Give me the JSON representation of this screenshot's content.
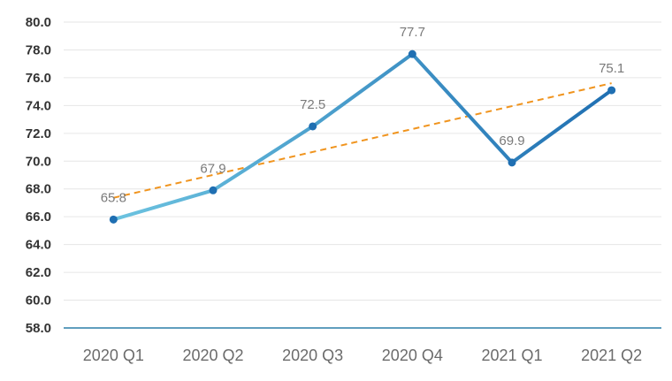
{
  "chart_data": {
    "type": "line",
    "categories": [
      "2020 Q1",
      "2020 Q2",
      "2020 Q3",
      "2020 Q4",
      "2021 Q1",
      "2021 Q2"
    ],
    "series": [
      {
        "values": [
          65.8,
          67.9,
          72.5,
          77.7,
          69.9,
          75.1
        ]
      }
    ],
    "data_labels": [
      "65.8",
      "67.9",
      "72.5",
      "77.7",
      "69.9",
      "75.1"
    ],
    "trendline": {
      "style": "dashed",
      "color": "#f0941e"
    },
    "yticks": [
      "58.0",
      "60.0",
      "62.0",
      "64.0",
      "66.0",
      "68.0",
      "70.0",
      "72.0",
      "74.0",
      "76.0",
      "78.0",
      "80.0"
    ],
    "ylim": [
      58,
      80
    ],
    "grid": true,
    "legend": "none",
    "colors": {
      "line_start": "#6cc3e0",
      "line_end": "#1f6fb2",
      "marker": "#1f6fb2",
      "trend": "#f0941e",
      "axis": "#2c7fa8",
      "grid": "#e6e6e6"
    }
  }
}
